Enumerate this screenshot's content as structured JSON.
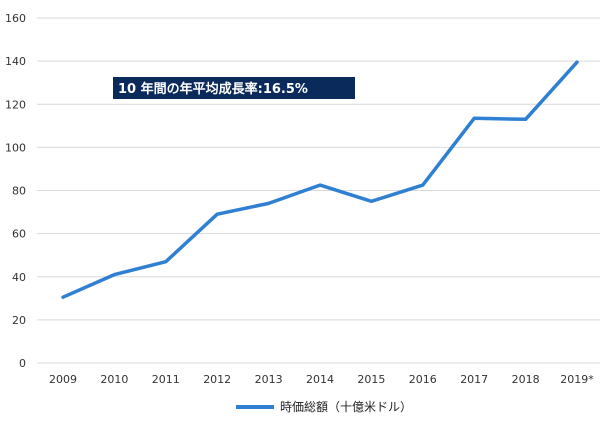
{
  "chart_data": {
    "type": "line",
    "categories": [
      "2009",
      "2010",
      "2011",
      "2012",
      "2013",
      "2014",
      "2015",
      "2016",
      "2017",
      "2018",
      "2019*"
    ],
    "series": [
      {
        "name": "時価総額（十億米ドル）",
        "values": [
          30.5,
          41,
          47,
          69,
          74,
          82.5,
          75,
          82.5,
          113.5,
          113,
          139.5
        ]
      }
    ],
    "ylim": [
      0,
      160
    ],
    "yticks": [
      0,
      20,
      40,
      60,
      80,
      100,
      120,
      140,
      160
    ],
    "grid": true,
    "legend": "bottom-center",
    "annotation": "10 年間の年平均成長率:16.5%"
  },
  "colors": {
    "line": "#2f7fd3",
    "grid": "#d9d9d9",
    "annotation_bg": "#0b2a5c"
  }
}
